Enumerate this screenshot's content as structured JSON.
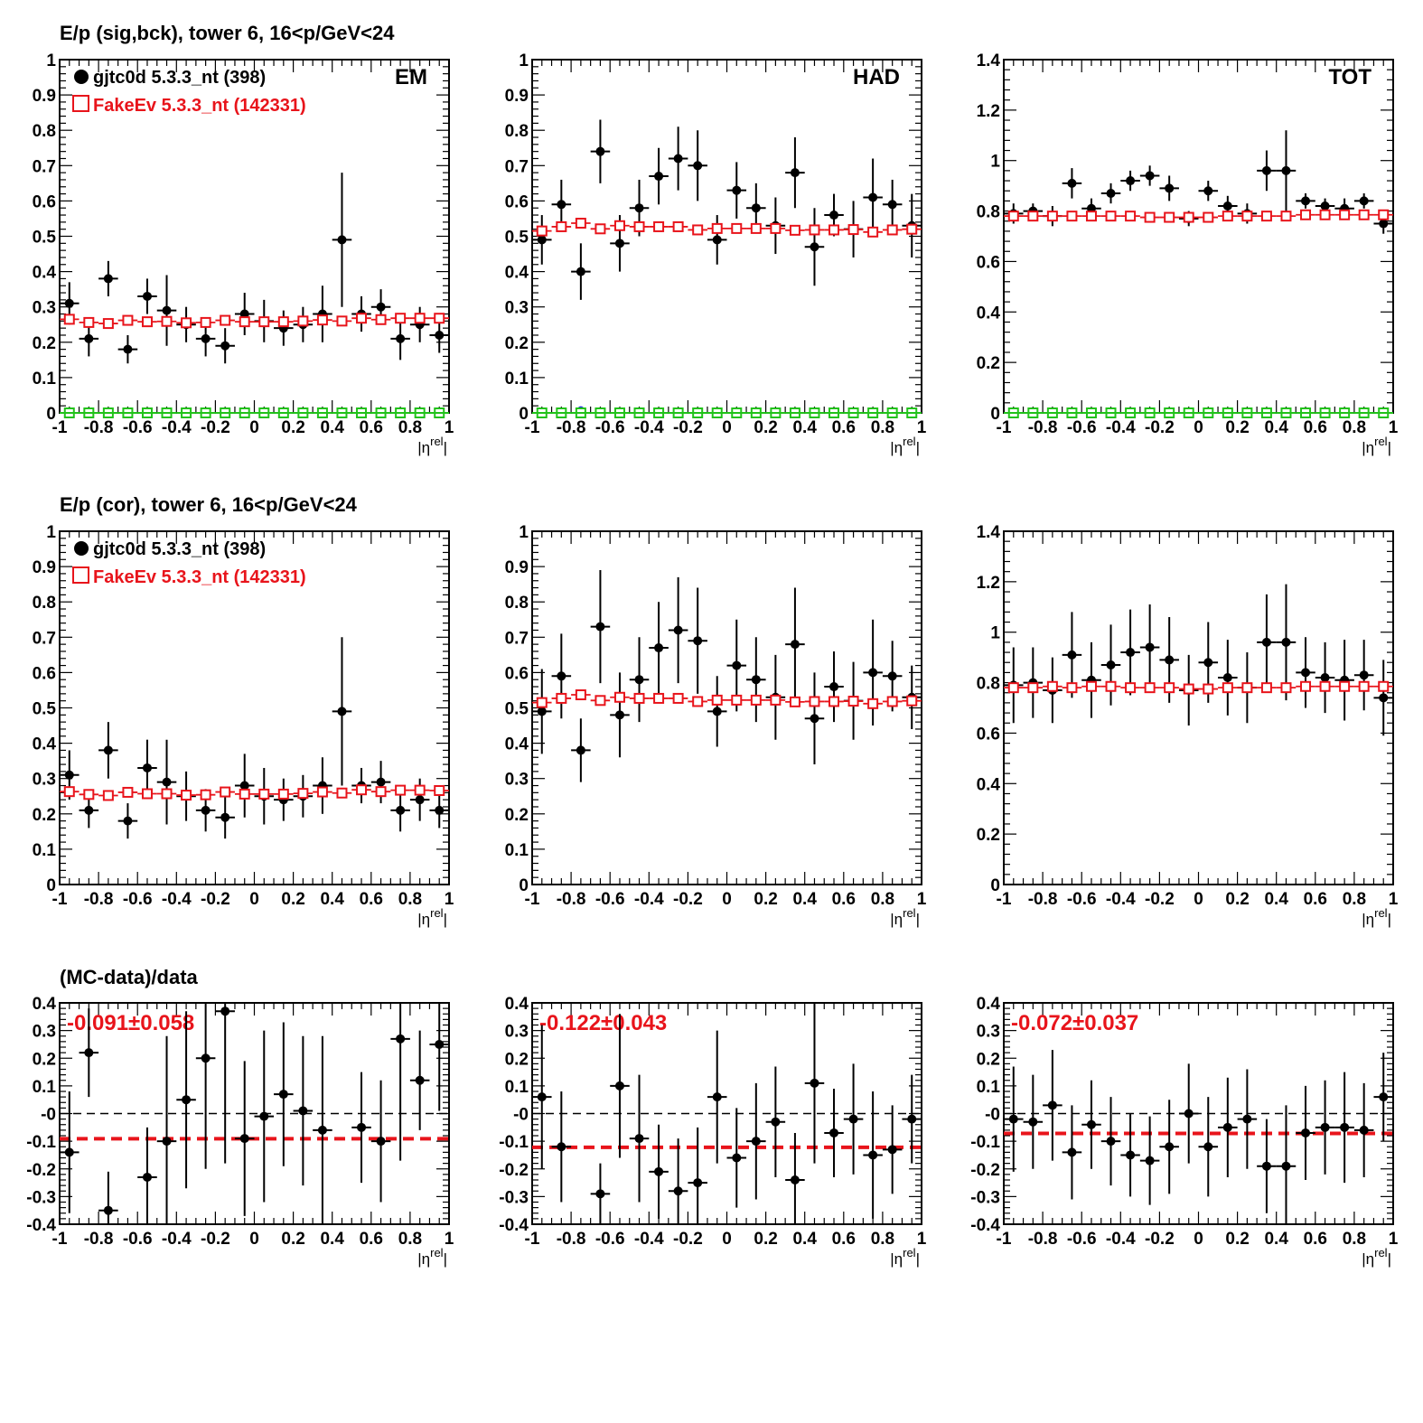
{
  "row_titles": [
    "E/p (sig,bck), tower 6, 16<p/GeV<24",
    "E/p (cor), tower 6, 16<p/GeV<24",
    "(MC-data)/data"
  ],
  "legend": {
    "data_label": "gjtc0d 5.3.3_nt (398)",
    "mc_label": "FakeEv 5.3.3_nt (142331)"
  },
  "panel_labels": [
    "EM",
    "HAD",
    "TOT"
  ],
  "x_axis": {
    "label_base": "|η",
    "label_sup": "rel",
    "label_end": "|",
    "ticks": [
      "-1",
      "-0.8",
      "-0.6",
      "-0.4",
      "-0.2",
      "0",
      "0.2",
      "0.4",
      "0.6",
      "0.8",
      "1"
    ],
    "tick_values": [
      -1,
      -0.8,
      -0.6,
      -0.4,
      -0.2,
      0,
      0.2,
      0.4,
      0.6,
      0.8,
      1
    ],
    "range": [
      -1,
      1
    ],
    "bin_centers": [
      -0.95,
      -0.85,
      -0.75,
      -0.65,
      -0.55,
      -0.45,
      -0.35,
      -0.25,
      -0.15,
      -0.05,
      0.05,
      0.15,
      0.25,
      0.35,
      0.45,
      0.55,
      0.65,
      0.75,
      0.85,
      0.95
    ]
  },
  "y_axes": {
    "ep_EM": {
      "range": [
        0,
        1
      ],
      "ticks": [
        "0",
        "0.1",
        "0.2",
        "0.3",
        "0.4",
        "0.5",
        "0.6",
        "0.7",
        "0.8",
        "0.9",
        "1"
      ],
      "tick_values": [
        0,
        0.1,
        0.2,
        0.3,
        0.4,
        0.5,
        0.6,
        0.7,
        0.8,
        0.9,
        1
      ]
    },
    "ep_HAD": {
      "range": [
        0,
        1
      ],
      "ticks": [
        "0",
        "0.1",
        "0.2",
        "0.3",
        "0.4",
        "0.5",
        "0.6",
        "0.7",
        "0.8",
        "0.9",
        "1"
      ],
      "tick_values": [
        0,
        0.1,
        0.2,
        0.3,
        0.4,
        0.5,
        0.6,
        0.7,
        0.8,
        0.9,
        1
      ]
    },
    "ep_TOT": {
      "range": [
        0,
        1.4
      ],
      "ticks": [
        "0",
        "0.2",
        "0.4",
        "0.6",
        "0.8",
        "1",
        "1.2",
        "1.4"
      ],
      "tick_values": [
        0,
        0.2,
        0.4,
        0.6,
        0.8,
        1,
        1.2,
        1.4
      ]
    },
    "ratio": {
      "range": [
        -0.4,
        0.4
      ],
      "ticks": [
        "-0.4",
        "-0.3",
        "-0.2",
        "-0.1",
        "-0",
        "0.1",
        "0.2",
        "0.3",
        "0.4"
      ],
      "tick_values": [
        -0.4,
        -0.3,
        -0.2,
        -0.1,
        0,
        0.1,
        0.2,
        0.3,
        0.4
      ]
    }
  },
  "colors": {
    "data": "#000000",
    "mc": "#e8141b",
    "bck_blue": "#1c33d9",
    "bck_green": "#22c21b",
    "zero_line": "#000000"
  },
  "chart_data": [
    {
      "type": "scatter",
      "panel": "EM",
      "row": "sig,bck",
      "yaxis": "ep_EM",
      "series": [
        {
          "name": "gjtc0d 5.3.3_nt (398)",
          "style": "data",
          "y": [
            0.31,
            0.21,
            0.38,
            0.18,
            0.33,
            0.29,
            0.25,
            0.21,
            0.19,
            0.28,
            0.26,
            0.24,
            0.25,
            0.28,
            0.49,
            0.28,
            0.3,
            0.21,
            0.25,
            0.22
          ],
          "err": [
            0.06,
            0.05,
            0.05,
            0.04,
            0.05,
            0.1,
            0.05,
            0.05,
            0.05,
            0.06,
            0.06,
            0.05,
            0.05,
            0.08,
            0.19,
            0.05,
            0.05,
            0.06,
            0.05,
            0.05
          ]
        },
        {
          "name": "FakeEv 5.3.3_nt (142331)",
          "style": "mc",
          "y": [
            0.265,
            0.256,
            0.253,
            0.262,
            0.258,
            0.259,
            0.255,
            0.256,
            0.262,
            0.258,
            0.258,
            0.258,
            0.26,
            0.263,
            0.26,
            0.268,
            0.264,
            0.268,
            0.268,
            0.268
          ],
          "err": [
            0.01,
            0.01,
            0.01,
            0.01,
            0.01,
            0.01,
            0.01,
            0.01,
            0.01,
            0.01,
            0.01,
            0.01,
            0.01,
            0.01,
            0.01,
            0.01,
            0.01,
            0.01,
            0.01,
            0.01
          ]
        },
        {
          "style": "bck_blue",
          "y": [
            0,
            0,
            0,
            0,
            0,
            0.003,
            0,
            0,
            0,
            0,
            0,
            0,
            0,
            0,
            0,
            0,
            0,
            0,
            0,
            0
          ]
        },
        {
          "style": "bck_green",
          "y": [
            0,
            0,
            0,
            0,
            0,
            0,
            0,
            0,
            0,
            0,
            0,
            0,
            0,
            0,
            0,
            0,
            0,
            0,
            0,
            0
          ]
        }
      ]
    },
    {
      "type": "scatter",
      "panel": "HAD",
      "row": "sig,bck",
      "yaxis": "ep_HAD",
      "series": [
        {
          "name": "gjtc0d 5.3.3_nt (398)",
          "style": "data",
          "y": [
            0.49,
            0.59,
            0.4,
            0.74,
            0.48,
            0.58,
            0.67,
            0.72,
            0.7,
            0.49,
            0.63,
            0.58,
            0.53,
            0.68,
            0.47,
            0.56,
            0.52,
            0.61,
            0.59,
            0.53
          ],
          "err": [
            0.07,
            0.07,
            0.08,
            0.09,
            0.08,
            0.08,
            0.08,
            0.09,
            0.1,
            0.07,
            0.08,
            0.07,
            0.08,
            0.1,
            0.11,
            0.06,
            0.08,
            0.11,
            0.07,
            0.09
          ]
        },
        {
          "name": "FakeEv 5.3.3_nt (142331)",
          "style": "mc",
          "y": [
            0.515,
            0.527,
            0.537,
            0.521,
            0.53,
            0.527,
            0.527,
            0.527,
            0.518,
            0.522,
            0.522,
            0.522,
            0.522,
            0.517,
            0.518,
            0.518,
            0.519,
            0.512,
            0.518,
            0.52
          ],
          "err": [
            0.01,
            0.01,
            0.01,
            0.01,
            0.01,
            0.01,
            0.01,
            0.01,
            0.01,
            0.01,
            0.01,
            0.01,
            0.01,
            0.01,
            0.01,
            0.01,
            0.01,
            0.01,
            0.01,
            0.01
          ]
        },
        {
          "style": "bck_blue",
          "y": [
            0,
            0,
            0.01,
            0,
            0,
            0,
            0,
            0,
            0.005,
            0,
            0.005,
            0,
            0,
            0,
            0,
            0,
            0,
            0,
            0,
            0
          ]
        },
        {
          "style": "bck_green",
          "y": [
            0,
            0,
            0,
            0,
            0,
            0,
            0,
            0,
            0,
            0,
            0,
            0,
            0,
            0,
            0,
            0,
            0,
            0,
            0,
            0
          ]
        }
      ]
    },
    {
      "type": "scatter",
      "panel": "TOT",
      "row": "sig,bck",
      "yaxis": "ep_TOT",
      "series": [
        {
          "name": "gjtc0d 5.3.3_nt (398)",
          "style": "data",
          "y": [
            0.79,
            0.8,
            0.78,
            0.91,
            0.81,
            0.87,
            0.92,
            0.94,
            0.89,
            0.77,
            0.88,
            0.82,
            0.79,
            0.96,
            0.96,
            0.84,
            0.82,
            0.81,
            0.84,
            0.75
          ],
          "err": [
            0.04,
            0.03,
            0.04,
            0.06,
            0.04,
            0.04,
            0.04,
            0.04,
            0.05,
            0.03,
            0.04,
            0.04,
            0.04,
            0.08,
            0.16,
            0.03,
            0.03,
            0.04,
            0.03,
            0.04
          ]
        },
        {
          "name": "FakeEv 5.3.3_nt (142331)",
          "style": "mc",
          "y": [
            0.78,
            0.78,
            0.78,
            0.78,
            0.78,
            0.78,
            0.78,
            0.775,
            0.775,
            0.775,
            0.775,
            0.78,
            0.78,
            0.78,
            0.78,
            0.785,
            0.785,
            0.785,
            0.785,
            0.785
          ],
          "err": [
            0.01,
            0.01,
            0.01,
            0.01,
            0.01,
            0.01,
            0.01,
            0.01,
            0.01,
            0.01,
            0.01,
            0.01,
            0.01,
            0.01,
            0.01,
            0.01,
            0.01,
            0.01,
            0.01,
            0.01
          ]
        },
        {
          "style": "bck_blue",
          "y": [
            0,
            0,
            0.005,
            0,
            0,
            0,
            0,
            0,
            0.005,
            0,
            0.005,
            0,
            0,
            0,
            0,
            0,
            0,
            0,
            0,
            0
          ]
        },
        {
          "style": "bck_green",
          "y": [
            0,
            0,
            0,
            0,
            0,
            0,
            0,
            0,
            0,
            0,
            0,
            0,
            0,
            0,
            0,
            0,
            0,
            0,
            0,
            0
          ]
        }
      ]
    },
    {
      "type": "scatter",
      "panel": "EM",
      "row": "cor",
      "yaxis": "ep_EM",
      "series": [
        {
          "name": "gjtc0d 5.3.3_nt (398)",
          "style": "data",
          "y": [
            0.31,
            0.21,
            0.38,
            0.18,
            0.33,
            0.29,
            0.25,
            0.21,
            0.19,
            0.28,
            0.25,
            0.24,
            0.25,
            0.28,
            0.49,
            0.28,
            0.29,
            0.21,
            0.24,
            0.21
          ],
          "err": [
            0.07,
            0.05,
            0.08,
            0.05,
            0.08,
            0.12,
            0.07,
            0.06,
            0.06,
            0.09,
            0.08,
            0.06,
            0.06,
            0.08,
            0.21,
            0.05,
            0.06,
            0.06,
            0.06,
            0.05
          ]
        },
        {
          "name": "FakeEv 5.3.3_nt (142331)",
          "style": "mc",
          "y": [
            0.263,
            0.255,
            0.252,
            0.261,
            0.257,
            0.257,
            0.253,
            0.254,
            0.262,
            0.256,
            0.256,
            0.256,
            0.258,
            0.262,
            0.259,
            0.268,
            0.263,
            0.267,
            0.267,
            0.266
          ],
          "err": [
            0.01,
            0.01,
            0.01,
            0.01,
            0.01,
            0.01,
            0.01,
            0.01,
            0.01,
            0.01,
            0.01,
            0.01,
            0.01,
            0.01,
            0.01,
            0.01,
            0.01,
            0.01,
            0.01,
            0.01
          ]
        }
      ]
    },
    {
      "type": "scatter",
      "panel": "HAD",
      "row": "cor",
      "yaxis": "ep_HAD",
      "series": [
        {
          "name": "gjtc0d 5.3.3_nt (398)",
          "style": "data",
          "y": [
            0.49,
            0.59,
            0.38,
            0.73,
            0.48,
            0.58,
            0.67,
            0.72,
            0.69,
            0.49,
            0.62,
            0.58,
            0.53,
            0.68,
            0.47,
            0.56,
            0.52,
            0.6,
            0.59,
            0.53
          ],
          "err": [
            0.12,
            0.12,
            0.09,
            0.16,
            0.12,
            0.12,
            0.13,
            0.15,
            0.15,
            0.1,
            0.13,
            0.12,
            0.12,
            0.16,
            0.13,
            0.1,
            0.11,
            0.15,
            0.1,
            0.09
          ]
        },
        {
          "name": "FakeEv 5.3.3_nt (142331)",
          "style": "mc",
          "y": [
            0.515,
            0.527,
            0.537,
            0.521,
            0.53,
            0.527,
            0.527,
            0.527,
            0.518,
            0.522,
            0.522,
            0.522,
            0.522,
            0.517,
            0.518,
            0.518,
            0.519,
            0.512,
            0.518,
            0.52
          ],
          "err": [
            0.01,
            0.01,
            0.01,
            0.01,
            0.01,
            0.01,
            0.01,
            0.01,
            0.01,
            0.01,
            0.01,
            0.01,
            0.01,
            0.01,
            0.01,
            0.01,
            0.01,
            0.01,
            0.01,
            0.01
          ]
        }
      ]
    },
    {
      "type": "scatter",
      "panel": "TOT",
      "row": "cor",
      "yaxis": "ep_TOT",
      "series": [
        {
          "name": "gjtc0d 5.3.3_nt (398)",
          "style": "data",
          "y": [
            0.79,
            0.8,
            0.77,
            0.91,
            0.81,
            0.87,
            0.92,
            0.94,
            0.89,
            0.77,
            0.88,
            0.82,
            0.78,
            0.96,
            0.96,
            0.84,
            0.82,
            0.81,
            0.83,
            0.74
          ],
          "err": [
            0.15,
            0.14,
            0.13,
            0.17,
            0.15,
            0.16,
            0.17,
            0.17,
            0.17,
            0.14,
            0.16,
            0.15,
            0.14,
            0.19,
            0.23,
            0.14,
            0.14,
            0.16,
            0.14,
            0.15
          ]
        },
        {
          "name": "FakeEv 5.3.3_nt (142331)",
          "style": "mc",
          "y": [
            0.78,
            0.78,
            0.785,
            0.78,
            0.785,
            0.785,
            0.78,
            0.78,
            0.78,
            0.775,
            0.775,
            0.78,
            0.78,
            0.78,
            0.78,
            0.785,
            0.785,
            0.785,
            0.785,
            0.785
          ],
          "err": [
            0.01,
            0.01,
            0.01,
            0.01,
            0.01,
            0.01,
            0.01,
            0.01,
            0.01,
            0.01,
            0.01,
            0.01,
            0.01,
            0.01,
            0.01,
            0.01,
            0.01,
            0.01,
            0.01,
            0.01
          ]
        }
      ]
    },
    {
      "type": "scatter",
      "panel": "EM",
      "row": "ratio",
      "yaxis": "ratio",
      "fit_text": "-0.091±0.058",
      "fit_value": -0.091,
      "series": [
        {
          "name": "(MC-data)/data",
          "style": "data",
          "y": [
            -0.14,
            0.22,
            -0.35,
            null,
            -0.23,
            -0.1,
            0.05,
            0.2,
            0.37,
            -0.09,
            -0.01,
            0.07,
            0.01,
            -0.06,
            null,
            -0.05,
            -0.1,
            0.27,
            0.12,
            0.25
          ],
          "err": [
            0.22,
            0.16,
            0.14,
            null,
            0.18,
            0.38,
            0.32,
            0.4,
            0.55,
            0.28,
            0.31,
            0.26,
            0.27,
            0.34,
            null,
            0.2,
            0.22,
            0.44,
            0.18,
            0.24
          ]
        }
      ]
    },
    {
      "type": "scatter",
      "panel": "HAD",
      "row": "ratio",
      "yaxis": "ratio",
      "fit_text": "-0.122±0.043",
      "fit_value": -0.122,
      "series": [
        {
          "name": "(MC-data)/data",
          "style": "data",
          "y": [
            0.06,
            -0.12,
            null,
            -0.29,
            0.1,
            -0.09,
            -0.21,
            -0.28,
            -0.25,
            0.06,
            -0.16,
            -0.1,
            -0.03,
            -0.24,
            0.11,
            -0.07,
            -0.02,
            -0.15,
            -0.13,
            -0.02
          ],
          "err": [
            0.26,
            0.2,
            null,
            0.11,
            0.26,
            0.23,
            0.17,
            0.19,
            0.2,
            0.24,
            0.18,
            0.21,
            0.2,
            0.17,
            0.29,
            0.16,
            0.2,
            0.23,
            0.16,
            0.16
          ]
        }
      ]
    },
    {
      "type": "scatter",
      "panel": "TOT",
      "row": "ratio",
      "yaxis": "ratio",
      "fit_text": "-0.072±0.037",
      "fit_value": -0.072,
      "series": [
        {
          "name": "(MC-data)/data",
          "style": "data",
          "y": [
            -0.02,
            -0.03,
            0.03,
            -0.14,
            -0.04,
            -0.1,
            -0.15,
            -0.17,
            -0.12,
            0.0,
            -0.12,
            -0.05,
            -0.02,
            -0.19,
            -0.19,
            -0.07,
            -0.05,
            -0.05,
            -0.06,
            0.06
          ],
          "err": [
            0.19,
            0.17,
            0.2,
            0.17,
            0.16,
            0.16,
            0.15,
            0.16,
            0.17,
            0.18,
            0.18,
            0.18,
            0.18,
            0.17,
            0.22,
            0.17,
            0.17,
            0.2,
            0.17,
            0.16
          ]
        }
      ]
    }
  ]
}
